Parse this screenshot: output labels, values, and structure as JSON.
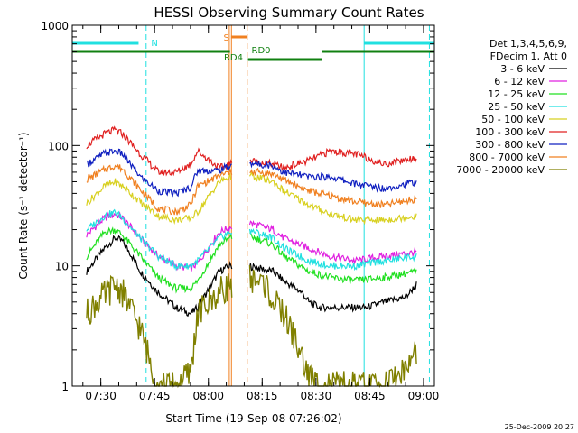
{
  "chart_data": {
    "type": "line",
    "title": "HESSI Observing Summary Count Rates",
    "xlabel": "Start Time (19-Sep-08 07:26:02)",
    "ylabel": "Count Rate (s⁻¹ detector⁻¹)",
    "ylim": [
      1,
      1000
    ],
    "yscale": "log",
    "xlim_minutes": [
      -4.0,
      97.0
    ],
    "x_ticks": [
      "07:30",
      "07:45",
      "08:00",
      "08:15",
      "08:30",
      "08:45",
      "09:00"
    ],
    "y_ticks": [
      "1",
      "10",
      "100",
      "1000"
    ],
    "footer_date": "25-Dec-2009 20:27",
    "legend": {
      "header": [
        "Det 1,3,4,5,6,9,",
        "FDecim 1, Att 0"
      ],
      "position": "right"
    },
    "series": [
      {
        "name": "3 - 6 keV",
        "color": "#000000",
        "x": [
          0,
          5,
          8,
          10,
          12,
          15,
          20,
          25,
          29,
          31,
          37,
          40,
          45,
          52,
          55,
          60,
          62,
          65,
          69,
          72,
          75,
          78,
          83,
          89,
          92
        ],
        "y": [
          9,
          14,
          17,
          16,
          13,
          9,
          6,
          4.5,
          4,
          4.5,
          9,
          10,
          10,
          9,
          7.5,
          6,
          5,
          4.5,
          4.5,
          4.5,
          4.5,
          4.5,
          5,
          5.5,
          7
        ]
      },
      {
        "name": "6 - 12 keV",
        "color": "#e020e0",
        "x": [
          0,
          5,
          8,
          10,
          15,
          20,
          25,
          29,
          31,
          37,
          40,
          45,
          52,
          55,
          62,
          68,
          75,
          83,
          92
        ],
        "y": [
          18,
          25,
          27,
          25,
          17,
          12,
          10,
          9.5,
          10.5,
          19,
          21,
          23,
          20,
          17,
          14,
          12,
          11,
          12,
          13
        ]
      },
      {
        "name": "12 - 25 keV",
        "color": "#20e020",
        "x": [
          0,
          5,
          8,
          10,
          15,
          20,
          25,
          29,
          31,
          37,
          40,
          45,
          52,
          55,
          62,
          68,
          75,
          83,
          92
        ],
        "y": [
          12,
          19,
          20,
          18,
          12,
          8,
          6.5,
          6.5,
          7.5,
          15,
          17,
          18,
          15,
          12,
          9,
          8,
          7.5,
          8,
          9
        ]
      },
      {
        "name": "25 - 50 keV",
        "color": "#20e0e0",
        "x": [
          0,
          5,
          8,
          10,
          15,
          20,
          25,
          29,
          31,
          37,
          40,
          45,
          52,
          55,
          62,
          68,
          75,
          83,
          92
        ],
        "y": [
          20,
          26,
          28,
          25,
          17,
          12,
          10,
          10,
          11,
          17,
          19,
          20,
          17,
          14,
          11,
          10,
          10,
          11,
          12
        ]
      },
      {
        "name": "50 - 100 keV",
        "color": "#d8d020",
        "x": [
          0,
          5,
          8,
          10,
          15,
          20,
          25,
          29,
          31,
          37,
          40,
          45,
          52,
          55,
          62,
          68,
          75,
          83,
          92
        ],
        "y": [
          33,
          46,
          50,
          46,
          34,
          26,
          24,
          25,
          28,
          50,
          55,
          57,
          50,
          42,
          32,
          27,
          24,
          24,
          26
        ]
      },
      {
        "name": "100 - 300 keV",
        "color": "#e02020",
        "x": [
          0,
          5,
          8,
          10,
          15,
          20,
          25,
          29,
          31,
          37,
          40,
          45,
          52,
          55,
          62,
          68,
          75,
          83,
          92
        ],
        "y": [
          100,
          125,
          135,
          125,
          85,
          60,
          60,
          70,
          90,
          65,
          70,
          75,
          70,
          65,
          75,
          90,
          85,
          70,
          80
        ]
      },
      {
        "name": "300 - 800 keV",
        "color": "#1020c0",
        "x": [
          0,
          5,
          8,
          10,
          15,
          20,
          25,
          29,
          31,
          37,
          40,
          45,
          52,
          55,
          62,
          68,
          75,
          83,
          92
        ],
        "y": [
          70,
          86,
          90,
          85,
          55,
          42,
          40,
          45,
          62,
          62,
          68,
          72,
          68,
          60,
          55,
          55,
          48,
          44,
          50
        ]
      },
      {
        "name": "800 - 7000 keV",
        "color": "#f08020",
        "x": [
          0,
          5,
          8,
          10,
          15,
          20,
          25,
          29,
          31,
          37,
          40,
          45,
          52,
          55,
          62,
          68,
          75,
          83,
          92
        ],
        "y": [
          52,
          63,
          68,
          64,
          43,
          30,
          28,
          32,
          46,
          56,
          60,
          62,
          58,
          52,
          42,
          38,
          34,
          32,
          36
        ]
      },
      {
        "name": "7000 - 20000 keV",
        "color": "#808000",
        "x": [
          0,
          3,
          6,
          8,
          10,
          13,
          15,
          18,
          20,
          25,
          29,
          31,
          37,
          40,
          45,
          50,
          52,
          55,
          58,
          62,
          65,
          70,
          75,
          83,
          90,
          92
        ],
        "y": [
          4,
          5,
          6,
          7,
          6,
          4,
          3,
          1.5,
          1,
          1,
          1.3,
          4,
          6,
          7,
          8,
          7,
          5,
          4,
          2.5,
          1.2,
          1,
          1,
          1,
          1,
          1.5,
          2
        ]
      }
    ],
    "vertical_lines": [
      {
        "label": "",
        "minute": -4.0,
        "style": "solid",
        "color": "#20e0e0"
      },
      {
        "label": "",
        "minute": 16.6,
        "style": "dashed",
        "color": "#20e0e0"
      },
      {
        "label": "",
        "minute": 44.8,
        "style": "dashed",
        "color": "#f08020"
      },
      {
        "label": "",
        "minute": 77.4,
        "style": "solid",
        "color": "#20e0e0"
      },
      {
        "label": "",
        "minute": 95.6,
        "style": "dashed",
        "color": "#20e0e0"
      },
      {
        "label": "",
        "minute": 39.8,
        "style": "solid",
        "color": "#f08020"
      },
      {
        "label": "",
        "minute": 40.4,
        "style": "solid",
        "color": "#f08020"
      }
    ],
    "status_bars": [
      {
        "label": "N",
        "color": "#20e0e0",
        "segments": [
          [
            -4.0,
            14.5
          ],
          [
            77.4,
            97.0
          ]
        ],
        "label_minute": 17.0
      },
      {
        "label": "S",
        "color": "#f08020",
        "segments": [
          [
            40.3,
            44.8
          ]
        ],
        "label_minute": 38.2
      },
      {
        "label": "RD4",
        "color": "#108010",
        "segments": [
          [
            -4.0,
            40.0
          ]
        ],
        "label_minute": 38.3
      },
      {
        "label": "RD0",
        "color": "#108010",
        "segments": [
          [
            45.0,
            65.7
          ],
          [
            65.7,
            97.0
          ]
        ],
        "label_minute": 46.0
      }
    ]
  }
}
